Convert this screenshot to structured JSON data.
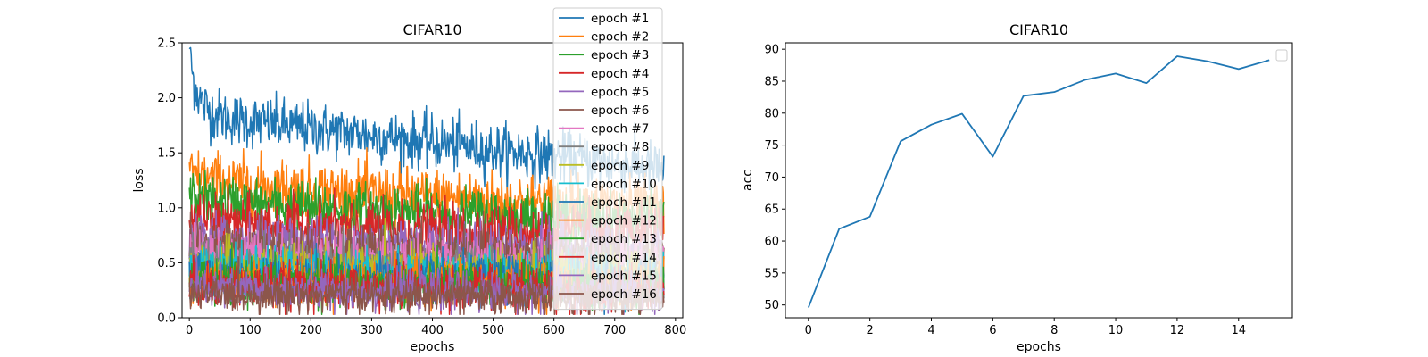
{
  "chart_data": [
    {
      "type": "line",
      "title": "CIFAR10",
      "xlabel": "epochs",
      "ylabel": "loss",
      "xlim": [
        -12,
        812
      ],
      "ylim": [
        0,
        2.5
      ],
      "xticks": [
        0,
        100,
        200,
        300,
        400,
        500,
        600,
        700,
        800
      ],
      "yticks": [
        0.0,
        0.5,
        1.0,
        1.5,
        2.0,
        2.5
      ],
      "ytick_labels": [
        "0.0",
        "0.5",
        "1.0",
        "1.5",
        "2.0",
        "2.5"
      ],
      "legend_position": "upper right",
      "grid": false,
      "n_steps": 782,
      "series": [
        {
          "name": "epoch #1",
          "color": "#1f77b4",
          "start": 2.35,
          "end": 1.35,
          "noise": 0.12
        },
        {
          "name": "epoch #2",
          "color": "#ff7f0e",
          "start": 1.3,
          "end": 1.0,
          "noise": 0.13
        },
        {
          "name": "epoch #3",
          "color": "#2ca02c",
          "start": 1.1,
          "end": 0.88,
          "noise": 0.12
        },
        {
          "name": "epoch #4",
          "color": "#d62728",
          "start": 0.9,
          "end": 0.75,
          "noise": 0.12
        },
        {
          "name": "epoch #5",
          "color": "#9467bd",
          "start": 0.75,
          "end": 0.62,
          "noise": 0.12
        },
        {
          "name": "epoch #6",
          "color": "#8c564b",
          "start": 0.65,
          "end": 0.55,
          "noise": 0.12
        },
        {
          "name": "epoch #7",
          "color": "#e377c2",
          "start": 0.58,
          "end": 0.48,
          "noise": 0.12
        },
        {
          "name": "epoch #8",
          "color": "#7f7f7f",
          "start": 0.52,
          "end": 0.43,
          "noise": 0.11
        },
        {
          "name": "epoch #9",
          "color": "#bcbd22",
          "start": 0.48,
          "end": 0.4,
          "noise": 0.11
        },
        {
          "name": "epoch #10",
          "color": "#17becf",
          "start": 0.44,
          "end": 0.37,
          "noise": 0.11
        },
        {
          "name": "epoch #11",
          "color": "#1f77b4",
          "start": 0.4,
          "end": 0.34,
          "noise": 0.1
        },
        {
          "name": "epoch #12",
          "color": "#ff7f0e",
          "start": 0.37,
          "end": 0.31,
          "noise": 0.1
        },
        {
          "name": "epoch #13",
          "color": "#2ca02c",
          "start": 0.34,
          "end": 0.28,
          "noise": 0.1
        },
        {
          "name": "epoch #14",
          "color": "#d62728",
          "start": 0.31,
          "end": 0.25,
          "noise": 0.1
        },
        {
          "name": "epoch #15",
          "color": "#9467bd",
          "start": 0.28,
          "end": 0.22,
          "noise": 0.09
        },
        {
          "name": "epoch #16",
          "color": "#8c564b",
          "start": 0.22,
          "end": 0.18,
          "noise": 0.08
        }
      ]
    },
    {
      "type": "line",
      "title": "CIFAR10",
      "xlabel": "epochs",
      "ylabel": "acc",
      "xlim": [
        -0.75,
        15.75
      ],
      "ylim": [
        48.0,
        91.0
      ],
      "xticks": [
        0,
        2,
        4,
        6,
        8,
        10,
        12,
        14
      ],
      "yticks": [
        50,
        55,
        60,
        65,
        70,
        75,
        80,
        85,
        90
      ],
      "legend_position": "upper right",
      "legend_entries": [],
      "grid": false,
      "series": [
        {
          "color": "#1f77b4",
          "x": [
            0,
            1,
            2,
            3,
            4,
            5,
            6,
            7,
            8,
            9,
            10,
            11,
            12,
            13,
            14,
            15
          ],
          "y": [
            49.6,
            61.9,
            63.8,
            75.6,
            78.2,
            79.9,
            73.2,
            82.7,
            83.3,
            85.2,
            86.2,
            84.7,
            88.9,
            88.1,
            86.9,
            88.3
          ]
        }
      ]
    }
  ]
}
